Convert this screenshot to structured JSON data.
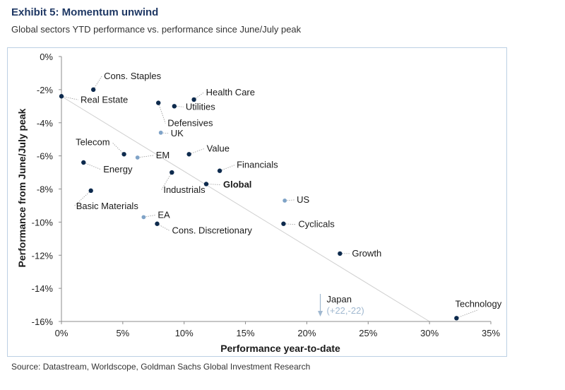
{
  "header": {
    "title": "Exhibit 5: Momentum unwind",
    "subtitle": "Global sectors YTD performance vs. performance since June/July peak"
  },
  "footer": {
    "source": "Source: Datastream, Worldscope, Goldman Sachs Global Investment Research"
  },
  "colors": {
    "dark_point": "#0d2a4d",
    "light_point": "#7fa3c7",
    "annotation_grey": "#a0b8d0",
    "trendline": "#cfcfcf"
  },
  "chart_data": {
    "type": "scatter",
    "title": "Exhibit 5: Momentum unwind",
    "xlabel": "Performance year-to-date",
    "ylabel": "Performance from June/July peak",
    "xlim": [
      0,
      35
    ],
    "ylim": [
      -16,
      0
    ],
    "xticks": [
      "0%",
      "5%",
      "10%",
      "15%",
      "20%",
      "25%",
      "30%",
      "35%"
    ],
    "yticks": [
      "0%",
      "-2%",
      "-4%",
      "-6%",
      "-8%",
      "-10%",
      "-12%",
      "-14%",
      "-16%"
    ],
    "xtick_values": [
      0,
      5,
      10,
      15,
      20,
      25,
      30,
      35
    ],
    "ytick_values": [
      0,
      -2,
      -4,
      -6,
      -8,
      -10,
      -12,
      -14,
      -16
    ],
    "grid": false,
    "trendline": {
      "x": [
        0,
        30
      ],
      "y": [
        -2.4,
        -16.0
      ]
    },
    "points": [
      {
        "name": "Cons. Staples",
        "x": 2.6,
        "y": -2.0,
        "style": "dark"
      },
      {
        "name": "Real Estate",
        "x": 0.0,
        "y": -2.4,
        "style": "dark"
      },
      {
        "name": "Health Care",
        "x": 10.8,
        "y": -2.6,
        "style": "dark"
      },
      {
        "name": "Utilities",
        "x": 9.2,
        "y": -3.0,
        "style": "dark"
      },
      {
        "name": "Defensives",
        "x": 7.9,
        "y": -2.8,
        "style": "dark"
      },
      {
        "name": "UK",
        "x": 8.1,
        "y": -4.6,
        "style": "light"
      },
      {
        "name": "Telecom",
        "x": 5.1,
        "y": -5.9,
        "style": "dark"
      },
      {
        "name": "EM",
        "x": 6.2,
        "y": -6.1,
        "style": "light"
      },
      {
        "name": "Value",
        "x": 10.4,
        "y": -5.9,
        "style": "dark"
      },
      {
        "name": "Energy",
        "x": 1.8,
        "y": -6.4,
        "style": "dark"
      },
      {
        "name": "Financials",
        "x": 12.9,
        "y": -6.9,
        "style": "dark"
      },
      {
        "name": "Industrials",
        "x": 9.0,
        "y": -7.0,
        "style": "dark"
      },
      {
        "name": "Global",
        "x": 11.8,
        "y": -7.7,
        "style": "dark",
        "bold": true
      },
      {
        "name": "Basic Materials",
        "x": 2.4,
        "y": -8.1,
        "style": "dark"
      },
      {
        "name": "US",
        "x": 18.2,
        "y": -8.7,
        "style": "light"
      },
      {
        "name": "EA",
        "x": 6.7,
        "y": -9.7,
        "style": "light"
      },
      {
        "name": "Cons. Discretionary",
        "x": 7.8,
        "y": -10.1,
        "style": "dark"
      },
      {
        "name": "Cyclicals",
        "x": 18.1,
        "y": -10.1,
        "style": "dark"
      },
      {
        "name": "Growth",
        "x": 22.7,
        "y": -11.9,
        "style": "dark"
      },
      {
        "name": "Technology",
        "x": 32.2,
        "y": -15.8,
        "style": "dark"
      }
    ],
    "annotation": {
      "label": "Japan",
      "value": "(+22,-22)",
      "x": 21.1
    }
  }
}
